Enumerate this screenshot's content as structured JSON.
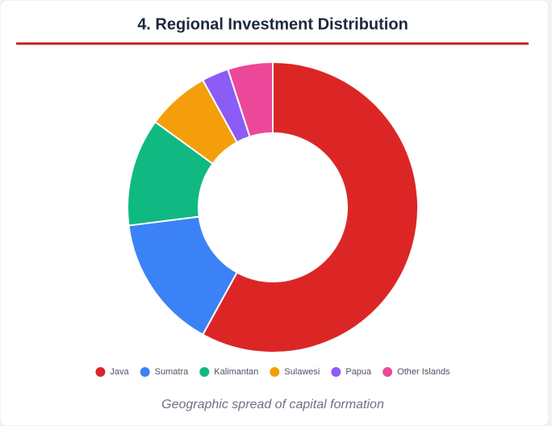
{
  "chart_data": {
    "type": "doughnut",
    "title": "4. Regional Investment Distribution",
    "categories": [
      "Java",
      "Sumatra",
      "Kalimantan",
      "Sulawesi",
      "Papua",
      "Other Islands"
    ],
    "values": [
      58,
      15,
      12,
      7,
      3,
      5
    ],
    "colors": [
      "#dc2626",
      "#3b82f6",
      "#10b981",
      "#f59e0b",
      "#8b5cf6",
      "#ec4899"
    ],
    "caption": "Geographic spread of capital formation"
  }
}
